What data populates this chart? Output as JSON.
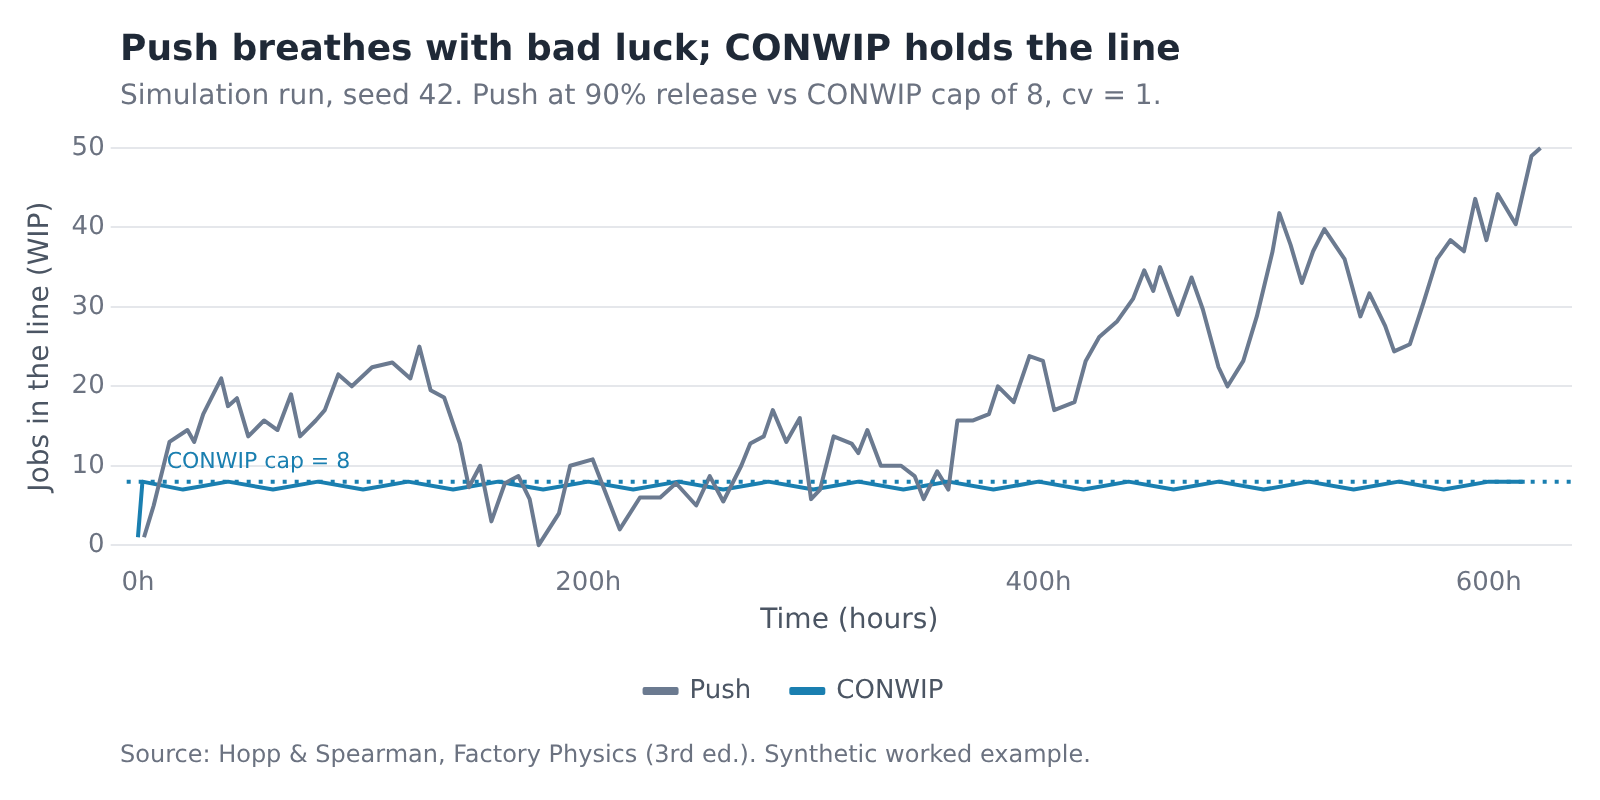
{
  "chart_data": {
    "type": "line",
    "title": "Push breathes with bad luck; CONWIP holds the line",
    "subtitle": "Simulation run, seed 42. Push at 90% release vs CONWIP cap of 8, cv = 1.",
    "xlabel": "Time (hours)",
    "ylabel": "Jobs in the line (WIP)",
    "xlim": [
      -5,
      637
    ],
    "ylim": [
      0,
      50
    ],
    "xticks": [
      {
        "value": 0,
        "label": "0h"
      },
      {
        "value": 200,
        "label": "200h"
      },
      {
        "value": 400,
        "label": "400h"
      },
      {
        "value": 600,
        "label": "600h"
      }
    ],
    "yticks": [
      0,
      10,
      20,
      30,
      40,
      50
    ],
    "grid": "y",
    "legend": "bottom",
    "marker": "none",
    "series": [
      {
        "name": "Push",
        "color": "#6b7a90",
        "x": [
          2.7,
          7,
          14,
          22,
          25,
          29,
          37,
          40,
          44,
          49,
          56,
          62,
          68,
          72,
          79,
          83,
          89,
          95,
          104,
          113,
          121,
          125,
          130,
          136,
          143,
          147,
          152,
          157,
          163,
          169,
          174,
          178,
          187,
          192,
          202,
          214,
          223,
          232,
          239,
          248,
          254,
          260,
          268,
          272,
          278,
          282,
          288,
          294,
          299,
          303,
          309,
          317,
          320,
          324,
          330,
          339,
          345,
          349,
          355,
          360,
          364,
          371,
          378,
          382,
          389,
          396,
          402,
          407,
          416,
          421,
          427,
          435,
          442,
          447,
          451,
          454,
          462,
          468,
          473,
          480,
          484,
          491,
          497,
          504,
          507,
          512,
          517,
          522,
          527,
          536,
          543,
          547,
          554,
          558,
          565,
          571,
          577,
          583,
          589,
          594,
          599,
          604,
          612,
          619,
          623
        ],
        "values": [
          1,
          5,
          13,
          14.5,
          13,
          16.5,
          21,
          17.5,
          18.5,
          13.7,
          15.7,
          14.5,
          19,
          13.7,
          15.7,
          17,
          21.5,
          20,
          22.4,
          23,
          21,
          25,
          19.5,
          18.6,
          12.8,
          7.3,
          10,
          3,
          7.8,
          8.7,
          5.8,
          0,
          4,
          10,
          10.8,
          2,
          6,
          6,
          7.8,
          5,
          8.7,
          5.5,
          10,
          12.8,
          13.7,
          17,
          13,
          16,
          5.8,
          7,
          13.7,
          12.8,
          11.6,
          14.5,
          10,
          10,
          8.7,
          5.8,
          9.3,
          7,
          15.7,
          15.7,
          16.5,
          20,
          18,
          23.8,
          23.2,
          17,
          18,
          23.2,
          26.2,
          28.2,
          31,
          34.6,
          32,
          35,
          29,
          33.7,
          29.7,
          22.4,
          20,
          23.2,
          28.8,
          37,
          41.8,
          37.8,
          33,
          37,
          39.8,
          36,
          28.8,
          31.7,
          27.6,
          24.4,
          25.3,
          30.5,
          36,
          38.4,
          37,
          43.6,
          38.4,
          44.2,
          40.4,
          49,
          50
        ]
      },
      {
        "name": "CONWIP",
        "color": "#1a7fb0",
        "x": [
          0,
          2,
          20,
          40,
          60,
          80,
          100,
          120,
          140,
          160,
          180,
          200,
          220,
          240,
          260,
          280,
          300,
          320,
          340,
          360,
          380,
          400,
          420,
          440,
          460,
          480,
          500,
          520,
          540,
          560,
          580,
          600,
          616
        ],
        "values": [
          1,
          8,
          7,
          8,
          7,
          8,
          7,
          8,
          7,
          8,
          7,
          8,
          7,
          8,
          7,
          8,
          7,
          8,
          7,
          8,
          7,
          8,
          7,
          8,
          7,
          8,
          7,
          8,
          7,
          8,
          7,
          8,
          8
        ]
      }
    ],
    "ref_lines": [
      {
        "axis": "y",
        "value": 8,
        "label": "CONWIP cap = 8",
        "color": "#1a7fb0",
        "line_style": "dotted"
      }
    ],
    "annotations": [
      "Source: Hopp & Spearman, Factory Physics (3rd ed.). Synthetic worked example."
    ]
  }
}
